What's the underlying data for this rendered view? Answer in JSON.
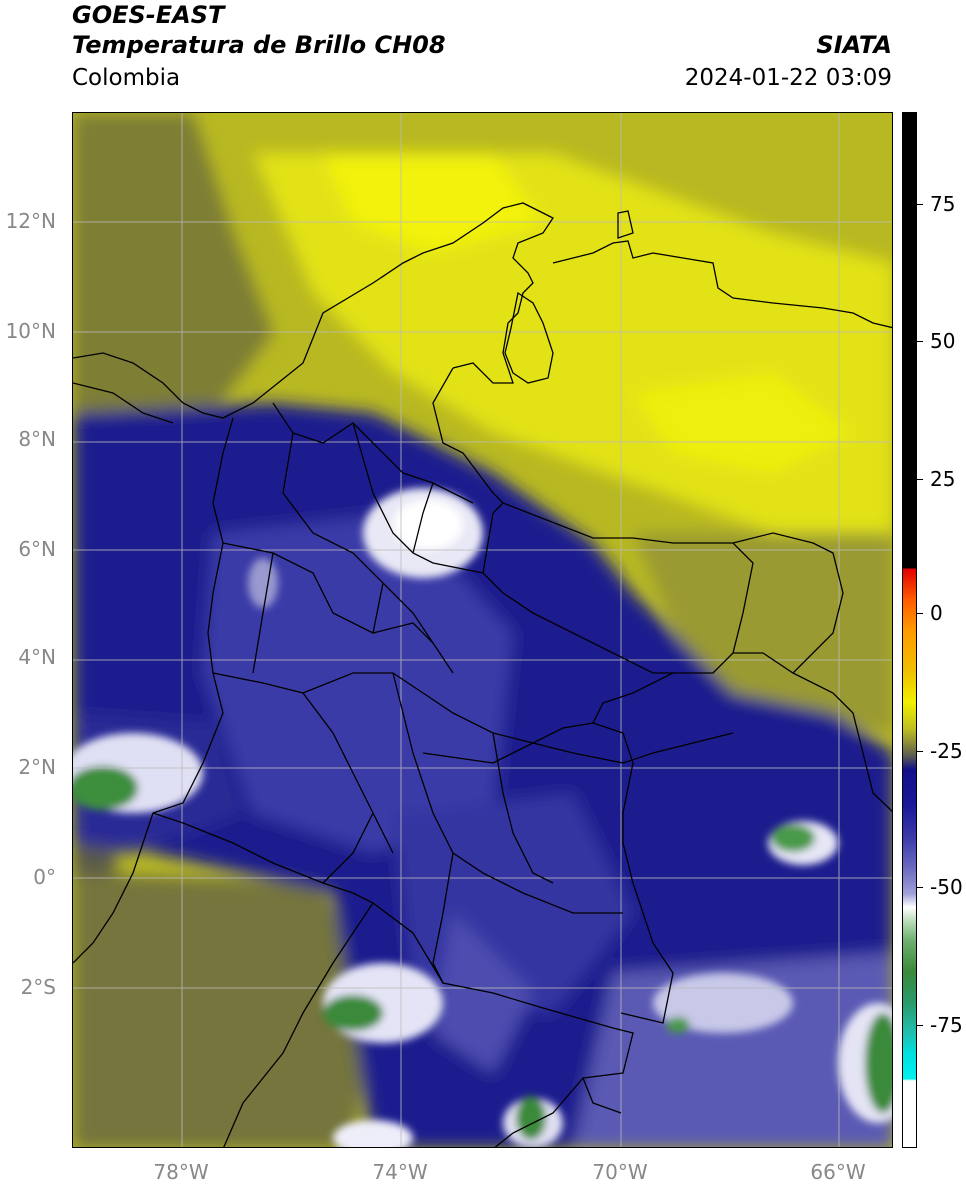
{
  "header": {
    "satellite": "GOES-EAST",
    "product": "Temperatura de Brillo CH08",
    "region": "Colombia",
    "agency": "SIATA",
    "datetime": "2024-01-22 03:09"
  },
  "map": {
    "lat_ticks": [
      "12°N",
      "10°N",
      "8°N",
      "6°N",
      "4°N",
      "2°N",
      "0°",
      "2°S"
    ],
    "lon_ticks": [
      "78°W",
      "74°W",
      "70°W",
      "66°W"
    ],
    "colors": {
      "yellow": "#d4d418",
      "olive": "#8a8a3a",
      "navy": "#1a1a8a",
      "periwinkle": "#5a5ab4",
      "white_cloud": "#f0f0fa",
      "green_cloud": "#3a8a3a",
      "border": "#000000",
      "grid": "#bbbbbb"
    }
  },
  "colorbar": {
    "ticks": [
      "75",
      "50",
      "25",
      "0",
      "-25",
      "-50",
      "-75"
    ]
  }
}
